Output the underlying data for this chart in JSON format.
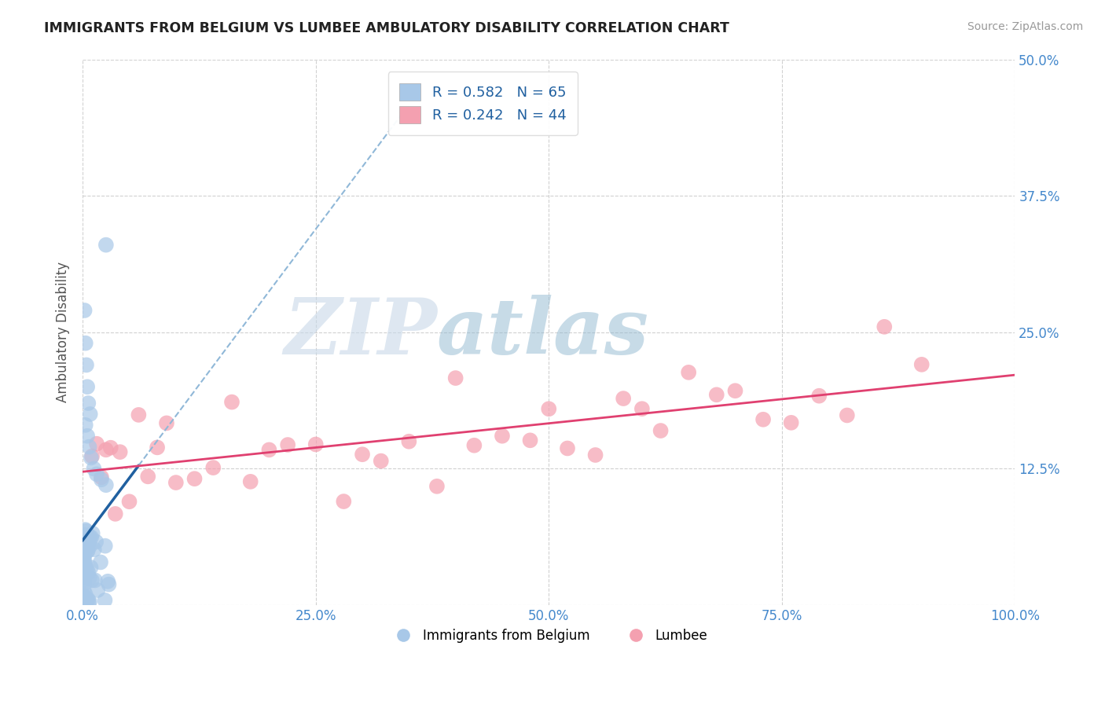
{
  "title": "IMMIGRANTS FROM BELGIUM VS LUMBEE AMBULATORY DISABILITY CORRELATION CHART",
  "source": "Source: ZipAtlas.com",
  "ylabel": "Ambulatory Disability",
  "legend_labels": [
    "Immigrants from Belgium",
    "Lumbee"
  ],
  "blue_R": 0.582,
  "blue_N": 65,
  "pink_R": 0.242,
  "pink_N": 44,
  "blue_color": "#a8c8e8",
  "pink_color": "#f4a0b0",
  "blue_line_color": "#2060a0",
  "pink_line_color": "#e04070",
  "dashed_line_color": "#90b8d8",
  "xlim": [
    0,
    1.0
  ],
  "ylim": [
    0,
    0.5
  ],
  "xticks": [
    0,
    0.25,
    0.5,
    0.75,
    1.0
  ],
  "xtick_labels": [
    "0.0%",
    "25.0%",
    "50.0%",
    "75.0%",
    "100.0%"
  ],
  "yticks": [
    0.0,
    0.125,
    0.25,
    0.375,
    0.5
  ],
  "ytick_labels_right": [
    "",
    "12.5%",
    "25.0%",
    "37.5%",
    "50.0%"
  ],
  "watermark_zip": "ZIP",
  "watermark_atlas": "atlas",
  "background_color": "#ffffff",
  "grid_color": "#cccccc",
  "tick_color": "#4488cc",
  "title_color": "#222222"
}
